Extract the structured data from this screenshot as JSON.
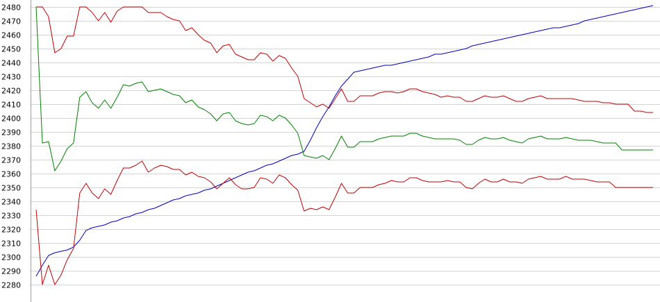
{
  "chart_data": {
    "type": "line",
    "title": "",
    "xlabel": "",
    "ylabel": "",
    "ylim": [
      2280,
      2480
    ],
    "yticks": [
      2280,
      2290,
      2300,
      2310,
      2320,
      2330,
      2340,
      2350,
      2360,
      2370,
      2380,
      2390,
      2400,
      2410,
      2420,
      2430,
      2440,
      2450,
      2460,
      2470,
      2480
    ],
    "grid": "horizontal",
    "legend": "none",
    "x": [
      0,
      1,
      2,
      3,
      4,
      5,
      6,
      7,
      8,
      9,
      10,
      11,
      12,
      13,
      14,
      15,
      16,
      17,
      18,
      19,
      20,
      21,
      22,
      23,
      24,
      25,
      26,
      27,
      28,
      29,
      30,
      31,
      32,
      33,
      34,
      35,
      36,
      37,
      38,
      39,
      40,
      41,
      42,
      43,
      44,
      45,
      46,
      47,
      48,
      49,
      50,
      51,
      52,
      53,
      54,
      55,
      56,
      57,
      58,
      59,
      60,
      61,
      62,
      63,
      64,
      65,
      66,
      67,
      68,
      69,
      70,
      71,
      72,
      73,
      74,
      75,
      76,
      77,
      78,
      79,
      80,
      81,
      82,
      83,
      84,
      85,
      86,
      87,
      88,
      89,
      90,
      91,
      92,
      93,
      94,
      95,
      96,
      97,
      98,
      99
    ],
    "series": [
      {
        "color": "#0000c0",
        "values": [
          2286,
          2294,
          2301,
          2303,
          2304,
          2305,
          2307,
          2312,
          2319,
          2321,
          2322,
          2323,
          2325,
          2326,
          2328,
          2329,
          2331,
          2332,
          2334,
          2335,
          2337,
          2339,
          2341,
          2342,
          2344,
          2345,
          2346,
          2348,
          2349,
          2351,
          2353,
          2355,
          2357,
          2359,
          2361,
          2362,
          2364,
          2366,
          2367,
          2369,
          2371,
          2373,
          2374,
          2376,
          2384,
          2393,
          2401,
          2408,
          2416,
          2423,
          2428,
          2433,
          2434,
          2435,
          2436,
          2437,
          2438,
          2438,
          2439,
          2440,
          2441,
          2442,
          2443,
          2444,
          2446,
          2446,
          2447,
          2448,
          2449,
          2450,
          2452,
          2453,
          2454,
          2455,
          2456,
          2457,
          2458,
          2459,
          2460,
          2461,
          2462,
          2463,
          2464,
          2465,
          2465,
          2466,
          2467,
          2468,
          2470,
          2471,
          2472,
          2473,
          2474,
          2475,
          2476,
          2477,
          2478,
          2479,
          2480,
          2481
        ]
      },
      {
        "color": "#c00000",
        "values": [
          2480,
          2480,
          2473,
          2447,
          2450,
          2459,
          2459,
          2480,
          2480,
          2476,
          2470,
          2476,
          2469,
          2477,
          2480,
          2480,
          2480,
          2480,
          2476,
          2476,
          2476,
          2473,
          2471,
          2470,
          2463,
          2465,
          2460,
          2456,
          2454,
          2447,
          2452,
          2453,
          2446,
          2444,
          2442,
          2442,
          2447,
          2446,
          2441,
          2445,
          2443,
          2436,
          2430,
          2414,
          2411,
          2408,
          2410,
          2407,
          2414,
          2421,
          2412,
          2412,
          2416,
          2416,
          2416,
          2418,
          2419,
          2419,
          2418,
          2419,
          2421,
          2421,
          2419,
          2418,
          2417,
          2415,
          2416,
          2415,
          2415,
          2412,
          2412,
          2414,
          2416,
          2415,
          2415,
          2416,
          2414,
          2412,
          2412,
          2414,
          2415,
          2416,
          2414,
          2414,
          2414,
          2414,
          2414,
          2413,
          2412,
          2412,
          2412,
          2411,
          2411,
          2410,
          2410,
          2410,
          2405,
          2405,
          2404,
          2404
        ]
      },
      {
        "color": "#008000",
        "values": [
          2480,
          2382,
          2383,
          2362,
          2369,
          2378,
          2382,
          2415,
          2419,
          2411,
          2407,
          2413,
          2407,
          2415,
          2424,
          2423,
          2425,
          2426,
          2419,
          2420,
          2421,
          2419,
          2417,
          2416,
          2411,
          2413,
          2408,
          2406,
          2403,
          2398,
          2403,
          2404,
          2398,
          2396,
          2395,
          2396,
          2402,
          2401,
          2398,
          2402,
          2400,
          2395,
          2389,
          2373,
          2372,
          2371,
          2373,
          2370,
          2378,
          2387,
          2379,
          2379,
          2383,
          2383,
          2383,
          2385,
          2386,
          2387,
          2387,
          2387,
          2389,
          2389,
          2387,
          2386,
          2385,
          2385,
          2385,
          2385,
          2384,
          2381,
          2381,
          2384,
          2386,
          2385,
          2385,
          2386,
          2384,
          2383,
          2382,
          2385,
          2386,
          2387,
          2385,
          2385,
          2385,
          2386,
          2385,
          2384,
          2384,
          2384,
          2383,
          2382,
          2382,
          2382,
          2377,
          2377,
          2377,
          2377,
          2377,
          2377
        ]
      },
      {
        "color": "#c00000",
        "values": [
          2334,
          2280,
          2294,
          2280,
          2287,
          2298,
          2306,
          2346,
          2353,
          2346,
          2342,
          2349,
          2345,
          2355,
          2364,
          2364,
          2366,
          2369,
          2361,
          2364,
          2366,
          2365,
          2363,
          2363,
          2359,
          2361,
          2358,
          2357,
          2354,
          2349,
          2353,
          2357,
          2352,
          2349,
          2349,
          2350,
          2357,
          2356,
          2353,
          2359,
          2357,
          2352,
          2348,
          2333,
          2335,
          2334,
          2336,
          2334,
          2343,
          2353,
          2346,
          2346,
          2350,
          2350,
          2350,
          2352,
          2353,
          2355,
          2354,
          2354,
          2357,
          2357,
          2355,
          2354,
          2354,
          2354,
          2355,
          2354,
          2354,
          2350,
          2349,
          2353,
          2356,
          2354,
          2354,
          2356,
          2354,
          2354,
          2353,
          2356,
          2357,
          2358,
          2356,
          2356,
          2356,
          2358,
          2356,
          2356,
          2356,
          2355,
          2354,
          2354,
          2354,
          2350,
          2350,
          2350,
          2350,
          2350,
          2350,
          2350
        ]
      }
    ]
  }
}
